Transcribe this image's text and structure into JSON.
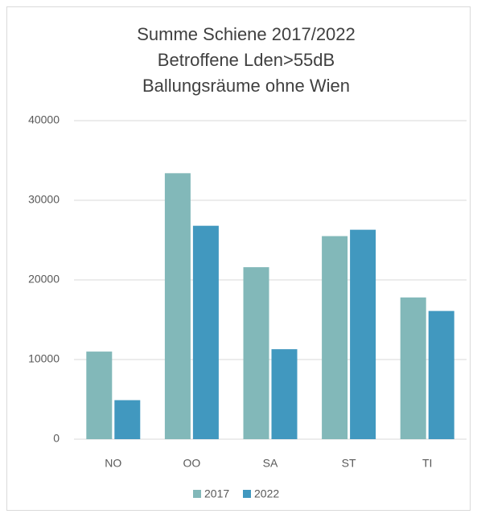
{
  "chart_data": {
    "type": "bar",
    "title": [
      "Summe Schiene 2017/2022",
      "Betroffene Lden>55dB",
      "Ballungsräume ohne Wien"
    ],
    "categories": [
      "NO",
      "OO",
      "SA",
      "ST",
      "TI"
    ],
    "series": [
      {
        "name": "2017",
        "color": "#82b8b9",
        "values": [
          11000,
          33400,
          21600,
          25500,
          17800
        ]
      },
      {
        "name": "2022",
        "color": "#4198bf",
        "values": [
          4900,
          26800,
          11300,
          26300,
          16100
        ]
      }
    ],
    "ylim": [
      0,
      40000
    ],
    "yticks": [
      0,
      10000,
      20000,
      30000,
      40000
    ],
    "grid": true,
    "legend": "bottom"
  }
}
